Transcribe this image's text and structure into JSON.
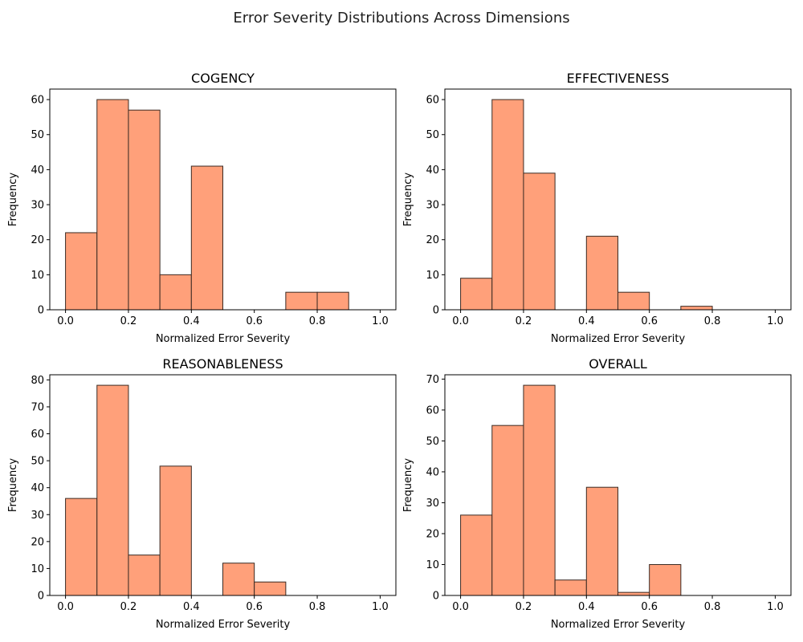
{
  "figure": {
    "suptitle": "Error Severity Distributions Across Dimensions",
    "bar_color": "#FFA07A",
    "edge_color": "#3a2a22"
  },
  "chart_data": [
    {
      "type": "bar",
      "title": "COGENCY",
      "xlabel": "Normalized Error Severity",
      "ylabel": "Frequency",
      "bin_edges": [
        0.0,
        0.1,
        0.2,
        0.3,
        0.4,
        0.5,
        0.6,
        0.7,
        0.8,
        0.9,
        1.0
      ],
      "values": [
        22,
        60,
        57,
        10,
        41,
        0,
        0,
        5,
        5,
        0
      ],
      "xlim": [
        -0.05,
        1.05
      ],
      "ylim": [
        0,
        63
      ],
      "xticks": [
        0.0,
        0.2,
        0.4,
        0.6,
        0.8,
        1.0
      ],
      "xtick_labels": [
        "0.0",
        "0.2",
        "0.4",
        "0.6",
        "0.8",
        "1.0"
      ],
      "yticks": [
        0,
        10,
        20,
        30,
        40,
        50,
        60
      ],
      "ytick_labels": [
        "0",
        "10",
        "20",
        "30",
        "40",
        "50",
        "60"
      ],
      "grid": false
    },
    {
      "type": "bar",
      "title": "EFFECTIVENESS",
      "xlabel": "Normalized Error Severity",
      "ylabel": "Frequency",
      "bin_edges": [
        0.0,
        0.1,
        0.2,
        0.3,
        0.4,
        0.5,
        0.6,
        0.7,
        0.8,
        0.9,
        1.0
      ],
      "values": [
        9,
        60,
        39,
        0,
        21,
        5,
        0,
        1,
        0,
        0
      ],
      "xlim": [
        -0.05,
        1.05
      ],
      "ylim": [
        0,
        63
      ],
      "xticks": [
        0.0,
        0.2,
        0.4,
        0.6,
        0.8,
        1.0
      ],
      "xtick_labels": [
        "0.0",
        "0.2",
        "0.4",
        "0.6",
        "0.8",
        "1.0"
      ],
      "yticks": [
        0,
        10,
        20,
        30,
        40,
        50,
        60
      ],
      "ytick_labels": [
        "0",
        "10",
        "20",
        "30",
        "40",
        "50",
        "60"
      ],
      "grid": false
    },
    {
      "type": "bar",
      "title": "REASONABLENESS",
      "xlabel": "Normalized Error Severity",
      "ylabel": "Frequency",
      "bin_edges": [
        0.0,
        0.1,
        0.2,
        0.3,
        0.4,
        0.5,
        0.6,
        0.7,
        0.8,
        0.9,
        1.0
      ],
      "values": [
        36,
        78,
        15,
        48,
        0,
        12,
        5,
        0,
        0,
        0
      ],
      "xlim": [
        -0.05,
        1.05
      ],
      "ylim": [
        0,
        81.9
      ],
      "xticks": [
        0.0,
        0.2,
        0.4,
        0.6,
        0.8,
        1.0
      ],
      "xtick_labels": [
        "0.0",
        "0.2",
        "0.4",
        "0.6",
        "0.8",
        "1.0"
      ],
      "yticks": [
        0,
        10,
        20,
        30,
        40,
        50,
        60,
        70,
        80
      ],
      "ytick_labels": [
        "0",
        "10",
        "20",
        "30",
        "40",
        "50",
        "60",
        "70",
        "80"
      ],
      "grid": false
    },
    {
      "type": "bar",
      "title": "OVERALL",
      "xlabel": "Normalized Error Severity",
      "ylabel": "Frequency",
      "bin_edges": [
        0.0,
        0.1,
        0.2,
        0.3,
        0.4,
        0.5,
        0.6,
        0.7,
        0.8,
        0.9,
        1.0
      ],
      "values": [
        26,
        55,
        68,
        5,
        35,
        1,
        10,
        0,
        0,
        0
      ],
      "xlim": [
        -0.05,
        1.05
      ],
      "ylim": [
        0,
        71.4
      ],
      "xticks": [
        0.0,
        0.2,
        0.4,
        0.6,
        0.8,
        1.0
      ],
      "xtick_labels": [
        "0.0",
        "0.2",
        "0.4",
        "0.6",
        "0.8",
        "1.0"
      ],
      "yticks": [
        0,
        10,
        20,
        30,
        40,
        50,
        60,
        70
      ],
      "ytick_labels": [
        "0",
        "10",
        "20",
        "30",
        "40",
        "50",
        "60",
        "70"
      ],
      "grid": false
    }
  ]
}
